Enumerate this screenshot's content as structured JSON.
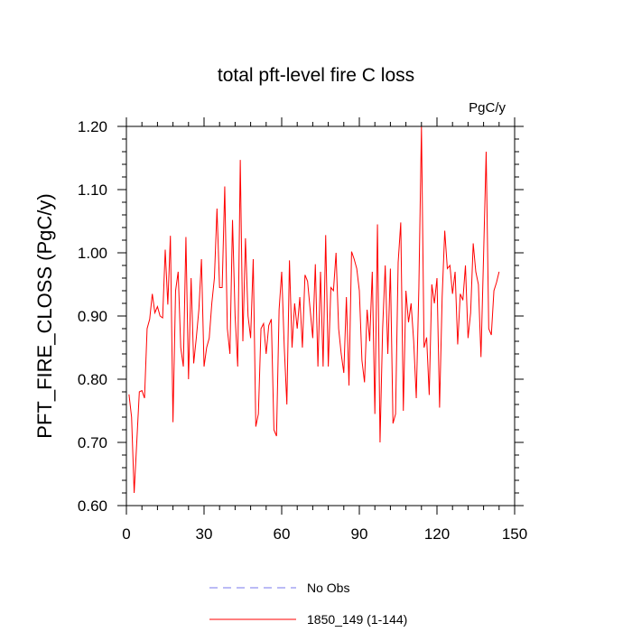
{
  "chart_data": {
    "type": "line",
    "title": "total pft-level fire C loss",
    "units": "PgC/y",
    "ylabel": "PFT_FIRE_CLOSS  (PgC/y)",
    "xlabel": "",
    "xlim": [
      0,
      150
    ],
    "ylim": [
      0.6,
      1.2
    ],
    "xticks": [
      0,
      30,
      60,
      90,
      120,
      150
    ],
    "xtick_labels": [
      "0",
      "30",
      "60",
      "90",
      "120",
      "150"
    ],
    "yticks": [
      0.6,
      0.7,
      0.8,
      0.9,
      1.0,
      1.1,
      1.2
    ],
    "ytick_labels": [
      "0.60",
      "0.70",
      "0.80",
      "0.90",
      "1.00",
      "1.10",
      "1.20"
    ],
    "grid": false,
    "legend_position": "bottom",
    "series": [
      {
        "name": "No Obs",
        "color": "#7777ee",
        "style": "dashed",
        "x": [],
        "values": []
      },
      {
        "name": "1850_149 (1-144)",
        "color": "#ff0000",
        "style": "solid",
        "x": [
          1,
          2,
          3,
          4,
          5,
          6,
          7,
          8,
          9,
          10,
          11,
          12,
          13,
          14,
          15,
          16,
          17,
          18,
          19,
          20,
          21,
          22,
          23,
          24,
          25,
          26,
          27,
          28,
          29,
          30,
          31,
          32,
          33,
          34,
          35,
          36,
          37,
          38,
          39,
          40,
          41,
          42,
          43,
          44,
          45,
          46,
          47,
          48,
          49,
          50,
          51,
          52,
          53,
          54,
          55,
          56,
          57,
          58,
          59,
          60,
          61,
          62,
          63,
          64,
          65,
          66,
          67,
          68,
          69,
          70,
          71,
          72,
          73,
          74,
          75,
          76,
          77,
          78,
          79,
          80,
          81,
          82,
          83,
          84,
          85,
          86,
          87,
          88,
          89,
          90,
          91,
          92,
          93,
          94,
          95,
          96,
          97,
          98,
          99,
          100,
          101,
          102,
          103,
          104,
          105,
          106,
          107,
          108,
          109,
          110,
          111,
          112,
          113,
          114,
          115,
          116,
          117,
          118,
          119,
          120,
          121,
          122,
          123,
          124,
          125,
          126,
          127,
          128,
          129,
          130,
          131,
          132,
          133,
          134,
          135,
          136,
          137,
          138,
          139,
          140,
          141,
          142,
          143,
          144
        ],
        "values": [
          0.776,
          0.74,
          0.62,
          0.7,
          0.78,
          0.782,
          0.77,
          0.88,
          0.895,
          0.935,
          0.905,
          0.915,
          0.9,
          0.897,
          1.005,
          0.918,
          1.027,
          0.732,
          0.94,
          0.97,
          0.85,
          0.82,
          1.025,
          0.8,
          0.96,
          0.825,
          0.865,
          0.91,
          0.99,
          0.82,
          0.85,
          0.865,
          0.92,
          0.96,
          1.07,
          0.945,
          0.945,
          1.105,
          0.88,
          0.84,
          1.052,
          0.9,
          0.82,
          1.147,
          0.86,
          1.023,
          0.9,
          0.865,
          0.99,
          0.725,
          0.745,
          0.88,
          0.888,
          0.84,
          0.885,
          0.895,
          0.72,
          0.71,
          0.91,
          0.97,
          0.85,
          0.76,
          0.988,
          0.85,
          0.92,
          0.88,
          0.93,
          0.85,
          0.965,
          0.955,
          0.91,
          0.865,
          0.982,
          0.82,
          0.97,
          0.82,
          1.028,
          0.82,
          0.945,
          0.94,
          1.0,
          0.88,
          0.84,
          0.81,
          0.93,
          0.79,
          1.002,
          0.99,
          0.975,
          0.94,
          0.83,
          0.795,
          0.91,
          0.86,
          0.97,
          0.745,
          1.045,
          0.7,
          0.88,
          0.98,
          0.84,
          0.975,
          0.73,
          0.745,
          0.985,
          1.048,
          0.75,
          0.94,
          0.89,
          0.92,
          0.86,
          0.77,
          0.945,
          1.2,
          0.85,
          0.866,
          0.775,
          0.95,
          0.92,
          0.96,
          0.755,
          0.93,
          1.035,
          0.975,
          0.98,
          0.935,
          0.97,
          0.855,
          0.935,
          0.925,
          0.98,
          0.865,
          0.905,
          1.015,
          0.97,
          0.95,
          0.835,
          0.995,
          1.16,
          0.88,
          0.87,
          0.94,
          0.953,
          0.97
        ]
      }
    ]
  }
}
